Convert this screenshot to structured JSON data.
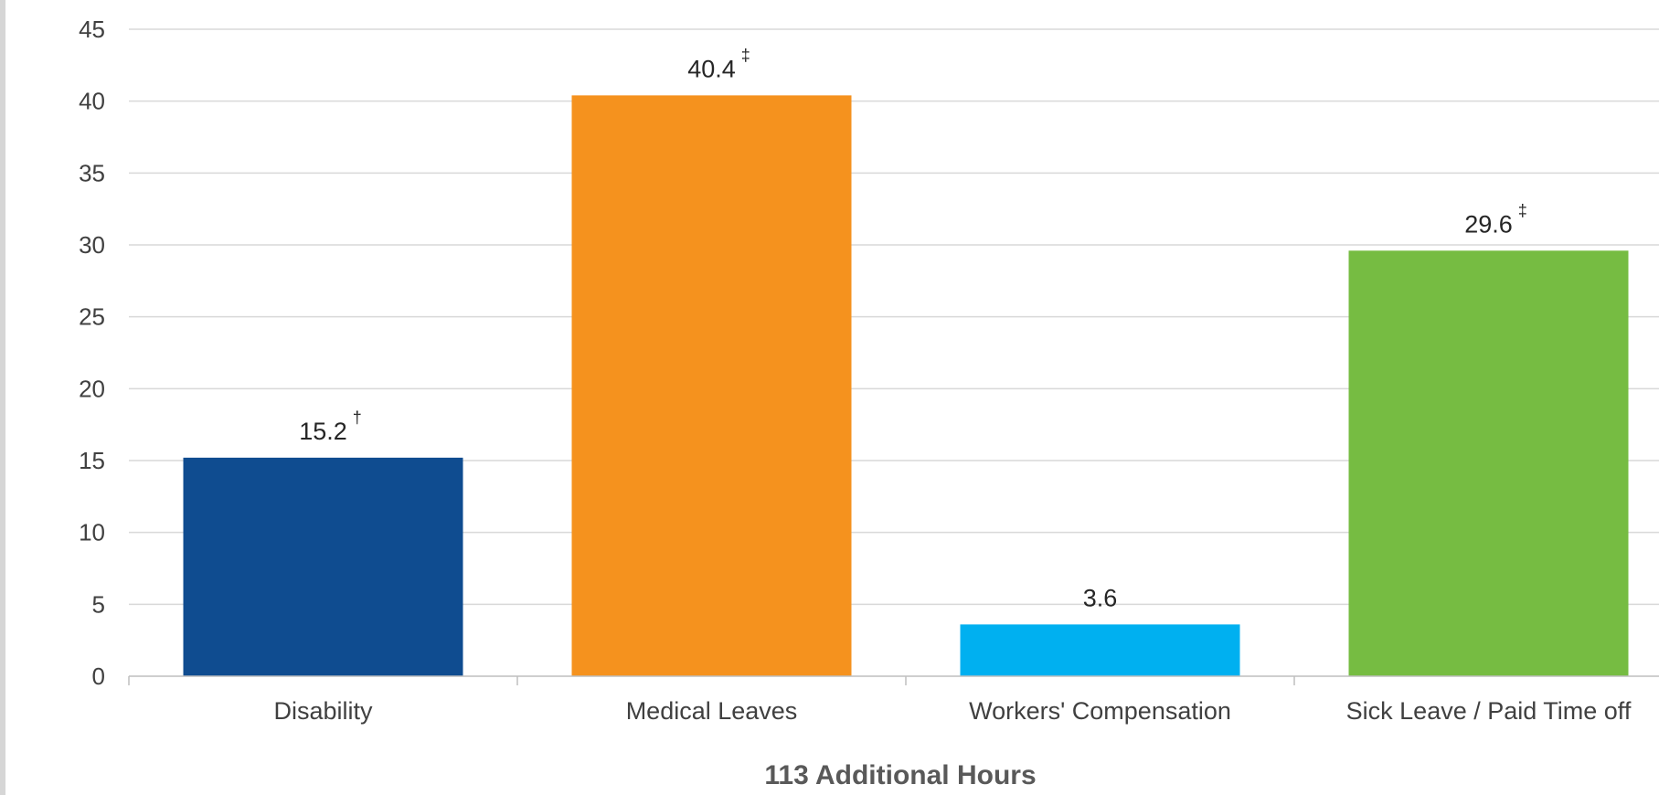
{
  "chart_data": {
    "type": "bar",
    "title": "",
    "xlabel": "113 Additional Hours",
    "ylabel": "",
    "ylim": [
      0,
      45
    ],
    "y_ticks": [
      "0",
      "5",
      "10",
      "15",
      "20",
      "25",
      "30",
      "35",
      "40",
      "45"
    ],
    "grid": true,
    "categories": [
      "Disability",
      "Medical Leaves",
      "Workers' Compensation",
      "Sick Leave / Paid Time off"
    ],
    "values": [
      15.2,
      40.4,
      3.6,
      29.6
    ],
    "data_labels": [
      "15.2",
      "40.4",
      "3.6",
      "29.6"
    ],
    "annotations": [
      "†",
      "‡",
      "",
      "‡"
    ],
    "colors": [
      "#0f4c90",
      "#f5921e",
      "#00b0f0",
      "#76bc42"
    ]
  },
  "colors": {
    "gridline": "#d9d9d9",
    "axis": "#bfbfbf"
  }
}
